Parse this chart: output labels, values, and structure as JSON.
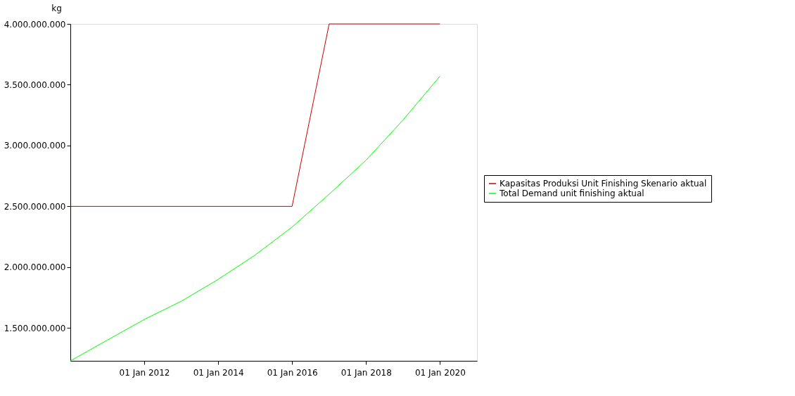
{
  "chart_data": {
    "type": "line",
    "ylabel": "kg",
    "x": [
      "2010-01-01",
      "2011-01-01",
      "2012-01-01",
      "2013-01-01",
      "2014-01-01",
      "2015-01-01",
      "2016-01-01",
      "2017-01-01",
      "2018-01-01",
      "2019-01-01",
      "2020-01-01"
    ],
    "series": [
      {
        "name": "Kapasitas Produksi Unit Finishing Skenario aktual",
        "color": "#cc0000",
        "x": [
          "2010-01-01",
          "2016-01-01",
          "2017-01-01",
          "2020-01-01"
        ],
        "values": [
          2500000000,
          2500000000,
          4000000000,
          4000000000
        ]
      },
      {
        "name": "Total Demand unit finishing aktual",
        "color": "#00ff00",
        "values": [
          1230000000,
          1400000000,
          1570000000,
          1720000000,
          1900000000,
          2100000000,
          2330000000,
          2600000000,
          2880000000,
          3210000000,
          3570000000
        ]
      }
    ],
    "xlim": [
      "2010-01-01",
      "2021-01-01"
    ],
    "xticks": [
      {
        "value": "2012-01-01",
        "label": "01 Jan 2012"
      },
      {
        "value": "2014-01-01",
        "label": "01 Jan 2014"
      },
      {
        "value": "2016-01-01",
        "label": "01 Jan 2016"
      },
      {
        "value": "2018-01-01",
        "label": "01 Jan 2018"
      },
      {
        "value": "2020-01-01",
        "label": "01 Jan 2020"
      }
    ],
    "ylim": [
      1230000000,
      4000000000
    ],
    "yticks": [
      {
        "value": 1500000000,
        "label": "1.500.000.000"
      },
      {
        "value": 2000000000,
        "label": "2.000.000.000"
      },
      {
        "value": 2500000000,
        "label": "2.500.000.000"
      },
      {
        "value": 3000000000,
        "label": "3.000.000.000"
      },
      {
        "value": 3500000000,
        "label": "3.500.000.000"
      },
      {
        "value": 4000000000,
        "label": "4.000.000.000"
      }
    ],
    "grid": false,
    "legend": "right",
    "marker": "none",
    "line_style": "solid"
  }
}
